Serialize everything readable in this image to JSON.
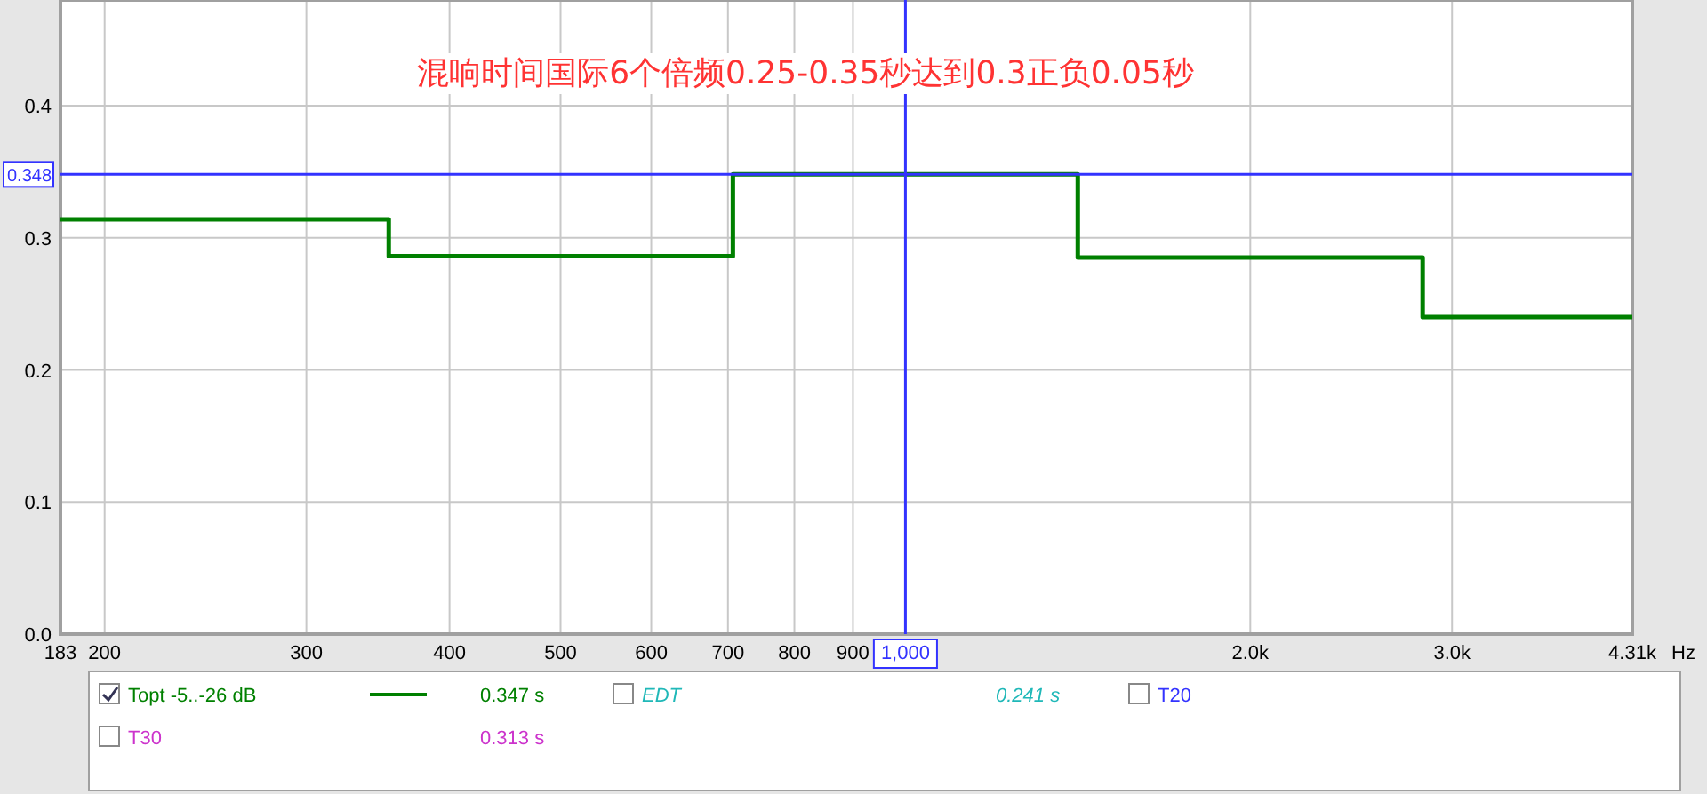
{
  "chart_data": {
    "type": "step",
    "title": "混响时间国际6个倍频0.25-0.35秒达到0.3正负0.05秒",
    "xlabel": "Hz",
    "log": "x",
    "grid": true,
    "legend": "bottom",
    "marker": "none",
    "line_style": "solid",
    "x": [
      183,
      354,
      707,
      1414,
      2828,
      4310
    ],
    "series": [
      {
        "name": "Topt -5..-26 dB",
        "color": "#008000",
        "values": [
          0.314,
          0.286,
          0.348,
          0.285,
          0.24,
          0.24
        ]
      }
    ],
    "xlim": [
      183,
      4310
    ],
    "ylim": [
      0,
      0.48
    ],
    "xticks": [
      183,
      200,
      300,
      400,
      500,
      600,
      700,
      800,
      900,
      {
        "value": 1000,
        "label": null
      },
      {
        "value": 2000,
        "label": "2.0k"
      },
      {
        "value": 3000,
        "label": "3.0k"
      },
      {
        "value": 4310,
        "label": "4.31k"
      }
    ],
    "yticks": [
      {
        "value": 0,
        "label": "0.0"
      },
      0.1,
      0.2,
      0.3,
      0.4
    ],
    "ref_lines": [
      {
        "axis": "y",
        "value": 0.348,
        "label": "0.348",
        "color": "#3333ff"
      },
      {
        "axis": "x",
        "value": 1000,
        "label": "1,000",
        "color": "#3333ff"
      }
    ],
    "annotations": [
      "0.347 s",
      "EDT",
      "0.241 s",
      "T20",
      "T30",
      "0.313 s"
    ]
  }
}
